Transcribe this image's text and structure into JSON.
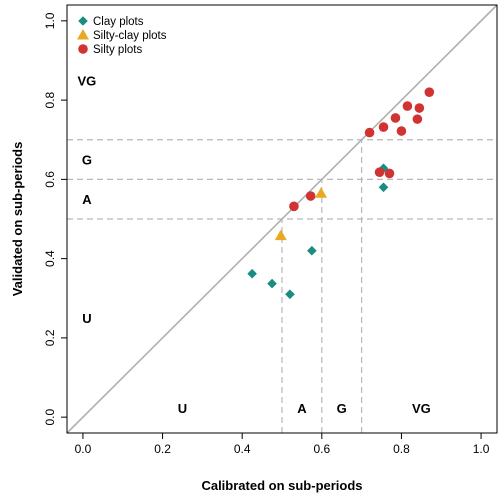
{
  "chart_data": {
    "type": "scatter",
    "xlabel": "Calibrated on sub-periods",
    "ylabel": "Validated  on sub-periods",
    "xlim": [
      -0.04,
      1.04
    ],
    "ylim": [
      -0.04,
      1.04
    ],
    "x_ticks": [
      "0.0",
      "0.2",
      "0.4",
      "0.6",
      "0.8",
      "1.0"
    ],
    "y_ticks": [
      "0.0",
      "0.2",
      "0.4",
      "0.6",
      "0.8",
      "1.0"
    ],
    "grid": false,
    "legend_position": "top-left",
    "diagonal_line": "y = x",
    "thresholds": [
      0.5,
      0.6,
      0.7
    ],
    "zone_labels_x": [
      {
        "label": "U",
        "x": 0.25,
        "y": 0.01
      },
      {
        "label": "A",
        "x": 0.55,
        "y": 0.01
      },
      {
        "label": "G",
        "x": 0.65,
        "y": 0.01
      },
      {
        "label": "VG",
        "x": 0.85,
        "y": 0.01
      }
    ],
    "zone_labels_y": [
      {
        "label": "VG",
        "x": 0.01,
        "y": 0.85
      },
      {
        "label": "G",
        "x": 0.01,
        "y": 0.65
      },
      {
        "label": "A",
        "x": 0.01,
        "y": 0.55
      },
      {
        "label": "U",
        "x": 0.01,
        "y": 0.25
      }
    ],
    "series": [
      {
        "name": "Clay plots",
        "color": "#1a8c80",
        "marker": "diamond",
        "points": [
          [
            0.425,
            0.362
          ],
          [
            0.475,
            0.337
          ],
          [
            0.52,
            0.31
          ],
          [
            0.575,
            0.42
          ],
          [
            0.755,
            0.628
          ],
          [
            0.755,
            0.58
          ]
        ]
      },
      {
        "name": "Silty-clay plots",
        "color": "#e8aa22",
        "marker": "triangle",
        "points": [
          [
            0.497,
            0.458
          ],
          [
            0.598,
            0.565
          ]
        ]
      },
      {
        "name": "Silty plots",
        "color": "#d13232",
        "marker": "circle",
        "points": [
          [
            0.53,
            0.532
          ],
          [
            0.572,
            0.558
          ],
          [
            0.72,
            0.718
          ],
          [
            0.745,
            0.618
          ],
          [
            0.77,
            0.615
          ],
          [
            0.755,
            0.732
          ],
          [
            0.785,
            0.755
          ],
          [
            0.8,
            0.722
          ],
          [
            0.815,
            0.785
          ],
          [
            0.84,
            0.752
          ],
          [
            0.845,
            0.78
          ],
          [
            0.87,
            0.82
          ]
        ]
      }
    ]
  }
}
